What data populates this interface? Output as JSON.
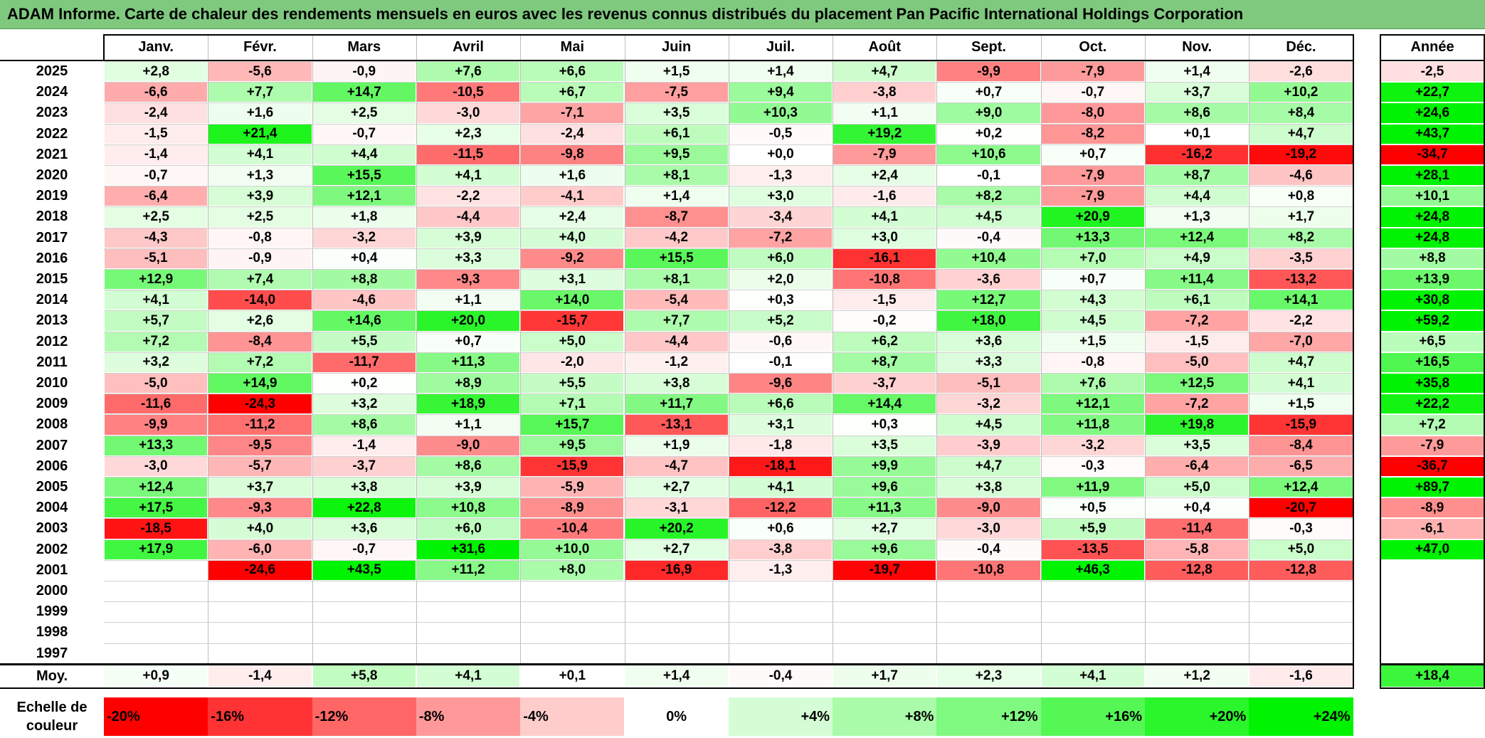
{
  "title": "ADAM Informe. Carte de chaleur des rendements mensuels en euros avec les revenus connus distribués du placement Pan Pacific International Holdings Corporation",
  "chart_data": {
    "type": "heatmap",
    "columns": [
      "Janv.",
      "Févr.",
      "Mars",
      "Avril",
      "Mai",
      "Juin",
      "Juil.",
      "Août",
      "Sept.",
      "Oct.",
      "Nov.",
      "Déc."
    ],
    "annual_label": "Année",
    "average_label": "Moy.",
    "rows": [
      {
        "year": "2025",
        "values": [
          "+2,8",
          "-5,6",
          "-0,9",
          "+7,6",
          "+6,6",
          "+1,5",
          "+1,4",
          "+4,7",
          "-9,9",
          "-7,9",
          "+1,4",
          "-2,6"
        ],
        "annual": "-2,5"
      },
      {
        "year": "2024",
        "values": [
          "-6,6",
          "+7,7",
          "+14,7",
          "-10,5",
          "+6,7",
          "-7,5",
          "+9,4",
          "-3,8",
          "+0,7",
          "-0,7",
          "+3,7",
          "+10,2"
        ],
        "annual": "+22,7"
      },
      {
        "year": "2023",
        "values": [
          "-2,4",
          "+1,6",
          "+2,5",
          "-3,0",
          "-7,1",
          "+3,5",
          "+10,3",
          "+1,1",
          "+9,0",
          "-8,0",
          "+8,6",
          "+8,4"
        ],
        "annual": "+24,6"
      },
      {
        "year": "2022",
        "values": [
          "-1,5",
          "+21,4",
          "-0,7",
          "+2,3",
          "-2,4",
          "+6,1",
          "-0,5",
          "+19,2",
          "+0,2",
          "-8,2",
          "+0,1",
          "+4,7"
        ],
        "annual": "+43,7"
      },
      {
        "year": "2021",
        "values": [
          "-1,4",
          "+4,1",
          "+4,4",
          "-11,5",
          "-9,8",
          "+9,5",
          "+0,0",
          "-7,9",
          "+10,6",
          "+0,7",
          "-16,2",
          "-19,2"
        ],
        "annual": "-34,7"
      },
      {
        "year": "2020",
        "values": [
          "-0,7",
          "+1,3",
          "+15,5",
          "+4,1",
          "+1,6",
          "+8,1",
          "-1,3",
          "+2,4",
          "-0,1",
          "-7,9",
          "+8,7",
          "-4,6"
        ],
        "annual": "+28,1"
      },
      {
        "year": "2019",
        "values": [
          "-6,4",
          "+3,9",
          "+12,1",
          "-2,2",
          "-4,1",
          "+1,4",
          "+3,0",
          "-1,6",
          "+8,2",
          "-7,9",
          "+4,4",
          "+0,8"
        ],
        "annual": "+10,1"
      },
      {
        "year": "2018",
        "values": [
          "+2,5",
          "+2,5",
          "+1,8",
          "-4,4",
          "+2,4",
          "-8,7",
          "-3,4",
          "+4,1",
          "+4,5",
          "+20,9",
          "+1,3",
          "+1,7"
        ],
        "annual": "+24,8"
      },
      {
        "year": "2017",
        "values": [
          "-4,3",
          "-0,8",
          "-3,2",
          "+3,9",
          "+4,0",
          "-4,2",
          "-7,2",
          "+3,0",
          "-0,4",
          "+13,3",
          "+12,4",
          "+8,2"
        ],
        "annual": "+24,8"
      },
      {
        "year": "2016",
        "values": [
          "-5,1",
          "-0,9",
          "+0,4",
          "+3,3",
          "-9,2",
          "+15,5",
          "+6,0",
          "-16,1",
          "+10,4",
          "+7,0",
          "+4,9",
          "-3,5"
        ],
        "annual": "+8,8"
      },
      {
        "year": "2015",
        "values": [
          "+12,9",
          "+7,4",
          "+8,8",
          "-9,3",
          "+3,1",
          "+8,1",
          "+2,0",
          "-10,8",
          "-3,6",
          "+0,7",
          "+11,4",
          "-13,2"
        ],
        "annual": "+13,9"
      },
      {
        "year": "2014",
        "values": [
          "+4,1",
          "-14,0",
          "-4,6",
          "+1,1",
          "+14,0",
          "-5,4",
          "+0,3",
          "-1,5",
          "+12,7",
          "+4,3",
          "+6,1",
          "+14,1"
        ],
        "annual": "+30,8"
      },
      {
        "year": "2013",
        "values": [
          "+5,7",
          "+2,6",
          "+14,6",
          "+20,0",
          "-15,7",
          "+7,7",
          "+5,2",
          "-0,2",
          "+18,0",
          "+4,5",
          "-7,2",
          "-2,2"
        ],
        "annual": "+59,2"
      },
      {
        "year": "2012",
        "values": [
          "+7,2",
          "-8,4",
          "+5,5",
          "+0,7",
          "+5,0",
          "-4,4",
          "-0,6",
          "+6,2",
          "+3,6",
          "+1,5",
          "-1,5",
          "-7,0"
        ],
        "annual": "+6,5"
      },
      {
        "year": "2011",
        "values": [
          "+3,2",
          "+7,2",
          "-11,7",
          "+11,3",
          "-2,0",
          "-1,2",
          "-0,1",
          "+8,7",
          "+3,3",
          "-0,8",
          "-5,0",
          "+4,7"
        ],
        "annual": "+16,5"
      },
      {
        "year": "2010",
        "values": [
          "-5,0",
          "+14,9",
          "+0,2",
          "+8,9",
          "+5,5",
          "+3,8",
          "-9,6",
          "-3,7",
          "-5,1",
          "+7,6",
          "+12,5",
          "+4,1"
        ],
        "annual": "+35,8"
      },
      {
        "year": "2009",
        "values": [
          "-11,6",
          "-24,3",
          "+3,2",
          "+18,9",
          "+7,1",
          "+11,7",
          "+6,6",
          "+14,4",
          "-3,2",
          "+12,1",
          "-7,2",
          "+1,5"
        ],
        "annual": "+22,2"
      },
      {
        "year": "2008",
        "values": [
          "-9,9",
          "-11,2",
          "+8,6",
          "+1,1",
          "+15,7",
          "-13,1",
          "+3,1",
          "+0,3",
          "+4,5",
          "+11,8",
          "+19,8",
          "-15,9"
        ],
        "annual": "+7,2"
      },
      {
        "year": "2007",
        "values": [
          "+13,3",
          "-9,5",
          "-1,4",
          "-9,0",
          "+9,5",
          "+1,9",
          "-1,8",
          "+3,5",
          "-3,9",
          "-3,2",
          "+3,5",
          "-8,4"
        ],
        "annual": "-7,9"
      },
      {
        "year": "2006",
        "values": [
          "-3,0",
          "-5,7",
          "-3,7",
          "+8,6",
          "-15,9",
          "-4,7",
          "-18,1",
          "+9,9",
          "+4,7",
          "-0,3",
          "-6,4",
          "-6,5"
        ],
        "annual": "-36,7"
      },
      {
        "year": "2005",
        "values": [
          "+12,4",
          "+3,7",
          "+3,8",
          "+3,9",
          "-5,9",
          "+2,7",
          "+4,1",
          "+9,6",
          "+3,8",
          "+11,9",
          "+5,0",
          "+12,4"
        ],
        "annual": "+89,7"
      },
      {
        "year": "2004",
        "values": [
          "+17,5",
          "-9,3",
          "+22,8",
          "+10,8",
          "-8,9",
          "-3,1",
          "-12,2",
          "+11,3",
          "-9,0",
          "+0,5",
          "+0,4",
          "-20,7"
        ],
        "annual": "-8,9"
      },
      {
        "year": "2003",
        "values": [
          "-18,5",
          "+4,0",
          "+3,6",
          "+6,0",
          "-10,4",
          "+20,2",
          "+0,6",
          "+2,7",
          "-3,0",
          "+5,9",
          "-11,4",
          "-0,3"
        ],
        "annual": "-6,1"
      },
      {
        "year": "2002",
        "values": [
          "+17,9",
          "-6,0",
          "-0,7",
          "+31,6",
          "+10,0",
          "+2,7",
          "-3,8",
          "+9,6",
          "-0,4",
          "-13,5",
          "-5,8",
          "+5,0"
        ],
        "annual": "+47,0"
      },
      {
        "year": "2001",
        "values": [
          "",
          "-24,6",
          "+43,5",
          "+11,2",
          "+8,0",
          "-16,9",
          "-1,3",
          "-19,7",
          "-10,8",
          "+46,3",
          "-12,8",
          "-12,8"
        ],
        "annual": ""
      },
      {
        "year": "2000",
        "values": [
          "",
          "",
          "",
          "",
          "",
          "",
          "",
          "",
          "",
          "",
          "",
          ""
        ],
        "annual": ""
      },
      {
        "year": "1999",
        "values": [
          "",
          "",
          "",
          "",
          "",
          "",
          "",
          "",
          "",
          "",
          "",
          ""
        ],
        "annual": ""
      },
      {
        "year": "1998",
        "values": [
          "",
          "",
          "",
          "",
          "",
          "",
          "",
          "",
          "",
          "",
          "",
          ""
        ],
        "annual": ""
      },
      {
        "year": "1997",
        "values": [
          "",
          "",
          "",
          "",
          "",
          "",
          "",
          "",
          "",
          "",
          "",
          ""
        ],
        "annual": ""
      }
    ],
    "averages": [
      "+0,9",
      "-1,4",
      "+5,8",
      "+4,1",
      "+0,1",
      "+1,4",
      "-0,4",
      "+1,7",
      "+2,3",
      "+4,1",
      "+1,2",
      "-1,6"
    ],
    "average_annual": "+18,4",
    "color_scale_label": "Echelle de couleur",
    "color_scale": [
      {
        "label": "-20%",
        "value": -20,
        "color": "#ff0000"
      },
      {
        "label": "-16%",
        "value": -16,
        "color": "#ff3333"
      },
      {
        "label": "-12%",
        "value": -12,
        "color": "#ff6666"
      },
      {
        "label": "-8%",
        "value": -8,
        "color": "#ff9999"
      },
      {
        "label": "-4%",
        "value": -4,
        "color": "#ffcccc"
      },
      {
        "label": "0%",
        "value": 0,
        "color": "#ffffff"
      },
      {
        "label": "+4%",
        "value": 4,
        "color": "#d5fdd5"
      },
      {
        "label": "+8%",
        "value": 8,
        "color": "#aafbaa"
      },
      {
        "label": "+12%",
        "value": 12,
        "color": "#80f980"
      },
      {
        "label": "+16%",
        "value": 16,
        "color": "#55f755"
      },
      {
        "label": "+20%",
        "value": 20,
        "color": "#2bf52b"
      },
      {
        "label": "+24%",
        "value": 24,
        "color": "#00f300"
      }
    ]
  }
}
